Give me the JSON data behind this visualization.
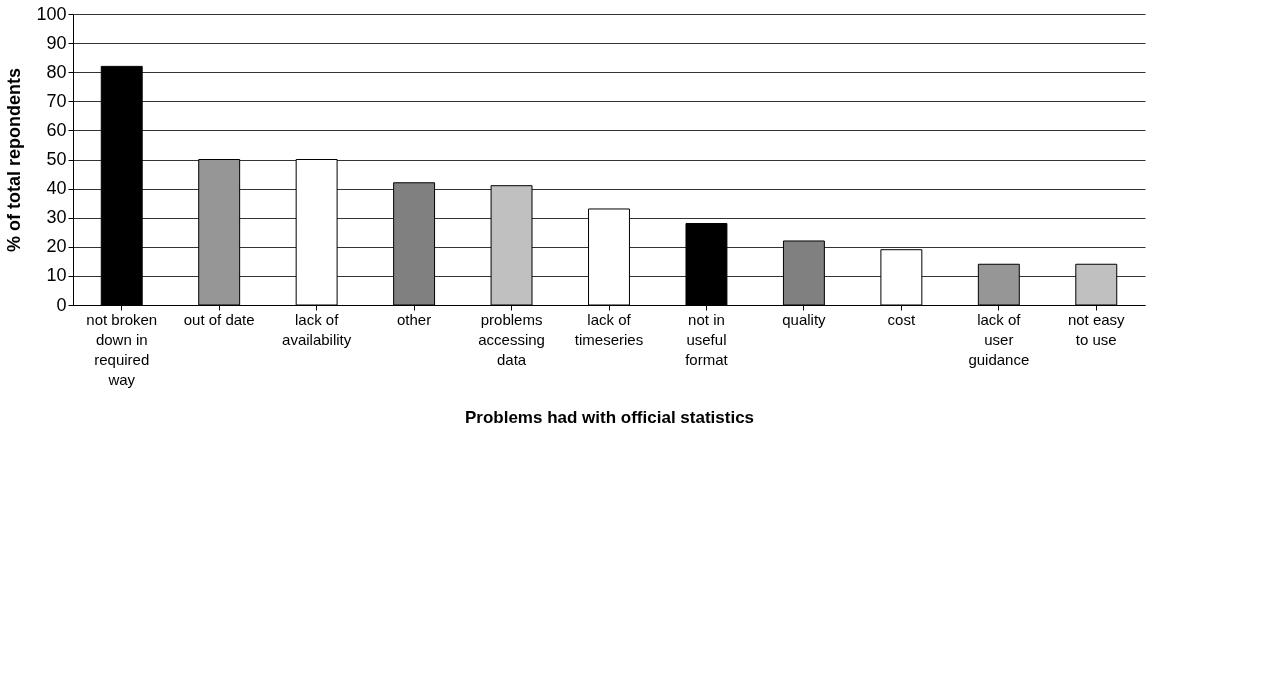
{
  "chart_data": {
    "type": "bar",
    "xlabel": "Problems had with official statistics",
    "ylabel": "% of total repondents",
    "categories": [
      "not broken\ndown in\nrequired\nway",
      "out of date",
      "lack of\navailability",
      "other",
      "problems\naccessing\ndata",
      "lack of\ntimeseries",
      "not in\nuseful\nformat",
      "quality",
      "cost",
      "lack of\nuser\nguidance",
      "not easy\nto use"
    ],
    "values": [
      82,
      50,
      50,
      42,
      41,
      33,
      28,
      22,
      19,
      14,
      14
    ],
    "colors": [
      "#000000",
      "#969696",
      "#ffffff",
      "#808080",
      "#c0c0c0",
      "#ffffff",
      "#000000",
      "#808080",
      "#ffffff",
      "#969696",
      "#c0c0c0"
    ],
    "ylim": [
      0,
      100
    ],
    "yticks": [
      0,
      10,
      20,
      30,
      40,
      50,
      60,
      70,
      80,
      90,
      100
    ],
    "grid": "y"
  }
}
